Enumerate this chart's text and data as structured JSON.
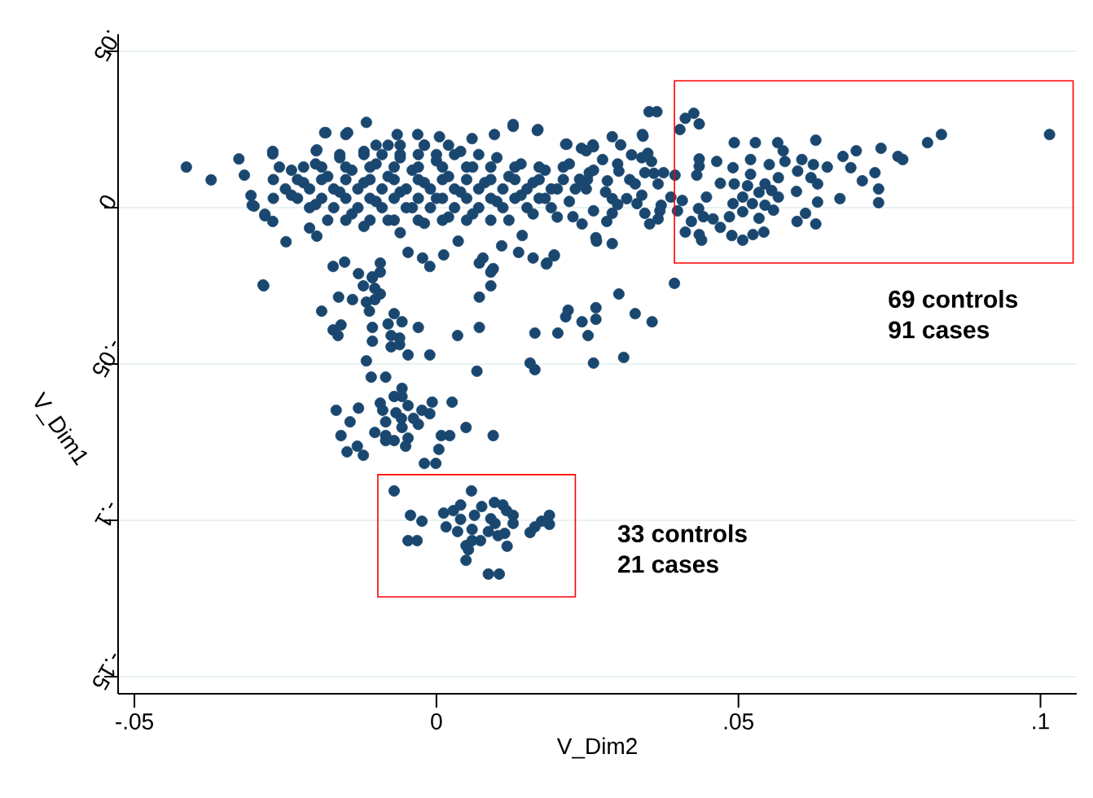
{
  "chart_data": {
    "type": "scatter",
    "xlabel": "V_Dim2",
    "ylabel": "V_Dim1",
    "color": "#1a476f",
    "marker": "circle",
    "grid": "y",
    "xlim": [
      -0.0527,
      0.106
    ],
    "ylim": [
      -0.1555,
      0.0555
    ],
    "xticks": [
      {
        "value": -0.05,
        "label": "-.05"
      },
      0,
      {
        "value": 0.05,
        "label": ".05"
      },
      {
        "value": 0.1,
        "label": ".1"
      }
    ],
    "yticks": [
      {
        "value": 0.05,
        "label": ".05"
      },
      0,
      {
        "value": -0.05,
        "label": "-.05"
      },
      {
        "value": -0.1,
        "label": "-.1"
      },
      {
        "value": -0.15,
        "label": "-.15"
      }
    ],
    "annotations": [
      "69 controls",
      "91 cases",
      "33 controls",
      "21 cases"
    ],
    "x": [
      -0.0414,
      -0.0373,
      -0.0327,
      -0.0318,
      -0.0307,
      -0.0302,
      -0.0284,
      -0.0271,
      -0.0287,
      -0.0249,
      -0.021,
      -0.0199,
      -0.0183,
      -0.015,
      -0.0116,
      -0.0065,
      -0.0031,
      0.0005,
      0.0059,
      0.0096,
      0.0127,
      0.0167,
      0.0214,
      0.0248,
      0.0291,
      0.0342,
      0.0352,
      0.0365,
      -0.024,
      -0.024,
      -0.022,
      -0.02,
      -0.02,
      -0.018,
      -0.018,
      -0.016,
      -0.016,
      -0.014,
      -0.014,
      -0.012,
      -0.012,
      -0.012,
      -0.01,
      -0.01,
      -0.008,
      -0.008,
      -0.008,
      -0.006,
      -0.006,
      -0.006,
      -0.004,
      -0.004,
      -0.002,
      -0.002,
      -0.002,
      0.0,
      0.0,
      0.002,
      0.002,
      0.004,
      0.004,
      0.006,
      0.006,
      0.008,
      0.01,
      0.01,
      0.012,
      0.012,
      0.014,
      0.014,
      0.016,
      0.016,
      0.018,
      0.018,
      0.02,
      0.02,
      0.022,
      0.022,
      0.024,
      0.026,
      0.026,
      0.028,
      0.03,
      0.03,
      0.032,
      0.034,
      0.034,
      0.036,
      0.037,
      0.0426,
      0.0412,
      0.0435,
      0.0403,
      0.0493,
      0.0528,
      0.0565,
      0.0628,
      0.0574,
      0.0695,
      0.0736,
      0.0813,
      0.0836,
      0.1015,
      0.0764,
      0.0772,
      0.0726,
      0.0732,
      0.0732,
      0.0673,
      0.0686,
      0.0705,
      0.0668,
      0.0631,
      0.0628,
      0.0611,
      0.0597,
      0.0542,
      0.0524,
      0.0507,
      0.0489,
      0.047,
      0.0439,
      0.0435,
      0.0412,
      0.0422,
      0.0399,
      0.0458,
      0.0434,
      0.0447,
      0.047,
      0.0435,
      0.0435,
      0.0431,
      0.0464,
      0.0491,
      0.052,
      0.052,
      0.0493,
      0.0515,
      0.0551,
      0.0577,
      0.0605,
      0.0624,
      0.0647,
      0.0598,
      0.0566,
      0.0544,
      0.0534,
      0.0566,
      0.0596,
      0.062,
      0.0631,
      0.0555,
      0.0507,
      0.0491,
      0.0523,
      0.0544,
      0.0558,
      0.0534,
      0.0507,
      0.0485,
      0.0442,
      0.0395,
      0.0376,
      0.0341,
      0.0305,
      0.035,
      0.0323,
      0.0356,
      0.0259,
      0.024,
      0.0275,
      0.0302,
      0.0345,
      0.0253,
      0.0367,
      0.0329,
      0.0283,
      0.0237,
      0.0248,
      0.0291,
      0.0315,
      0.0332,
      0.0372,
      0.0388,
      0.0407,
      0.0345,
      0.0367,
      0.0353,
      0.0291,
      0.0282,
      0.0241,
      0.0264,
      0.0291,
      0.0226,
      -0.0198,
      -0.0171,
      -0.0152,
      -0.0129,
      -0.0106,
      -0.0093,
      -0.0023,
      -0.0011,
      0.0012,
      0.0071,
      0.0093,
      0.0136,
      0.016,
      0.0183,
      0.0195,
      0.0108,
      0.0142,
      0.0265,
      -0.0047,
      0.0036,
      -0.0271,
      -0.0284,
      -0.0305,
      -0.0271,
      -0.0198,
      -0.0185,
      -0.0147,
      0.0127,
      0.0168,
      0.0216,
      0.026,
      -0.0286,
      -0.0106,
      -0.0093,
      -0.0121,
      -0.0102,
      -0.0093,
      -0.0102,
      -0.0116,
      -0.0111,
      -0.0162,
      -0.0139,
      -0.019,
      -0.0158,
      -0.0171,
      -0.0163,
      -0.0106,
      -0.0106,
      -0.007,
      -0.0057,
      -0.008,
      -0.0075,
      -0.0061,
      -0.0061,
      -0.0075,
      -0.003,
      -0.0047,
      -0.0011,
      -0.0116,
      -0.0108,
      -0.0084,
      0.0035,
      0.0071,
      0.0071,
      0.009,
      0.009,
      0.0094,
      0.0077,
      0.0067,
      0.0163,
      0.0201,
      0.0214,
      0.0218,
      0.0241,
      0.0251,
      0.0264,
      0.0264,
      0.0302,
      0.0329,
      0.0357,
      0.0394,
      0.031,
      0.026,
      0.0155,
      0.0163,
      0.0182,
      0.0195,
      -0.0057,
      -0.007,
      -0.0057,
      -0.0093,
      -0.0089,
      -0.0047,
      -0.0007,
      0.0026,
      -0.0024,
      -0.0011,
      -0.0067,
      -0.0058,
      -0.0038,
      -0.003,
      -0.0084,
      -0.0057,
      -0.0166,
      -0.0129,
      -0.0143,
      -0.0158,
      -0.0102,
      -0.0084,
      -0.0084,
      -0.007,
      -0.0047,
      -0.0051,
      -0.0131,
      -0.0148,
      -0.0121,
      0.0008,
      0.0022,
      0.0049,
      0.0094,
      0.0004,
      -0.002,
      -0.0001,
      -0.007,
      0.0058,
      -0.0043,
      -0.0024,
      -0.0047,
      -0.0032,
      0.0016,
      0.0012,
      0.0028,
      0.004,
      0.004,
      0.0035,
      0.0059,
      0.0063,
      0.0075,
      0.0096,
      0.011,
      0.0116,
      0.0127,
      0.0127,
      0.009,
      0.0097,
      0.0086,
      0.0102,
      0.0113,
      0.0073,
      0.0059,
      0.0049,
      0.0053,
      0.0049,
      0.0117,
      0.0155,
      0.0163,
      0.0174,
      0.0187,
      0.0187,
      0.0086,
      0.0104,
      -0.016,
      -0.012,
      -0.009,
      -0.006,
      -0.003,
      0.0,
      0.003,
      0.007,
      -0.026,
      -0.022,
      -0.019,
      -0.015,
      -0.011,
      -0.007,
      -0.003,
      0.001,
      0.005,
      0.009,
      0.013,
      0.017,
      0.021,
      -0.027,
      -0.023,
      -0.019,
      -0.015,
      -0.011,
      -0.007,
      -0.003,
      0.001,
      0.005,
      0.009,
      0.013,
      0.017,
      0.021,
      0.025,
      -0.025,
      -0.021,
      -0.017,
      -0.013,
      -0.009,
      -0.005,
      -0.001,
      0.003,
      0.007,
      0.011,
      0.015,
      0.019,
      0.023,
      -0.027,
      -0.023,
      -0.019,
      -0.015,
      -0.011,
      -0.007,
      -0.003,
      0.001,
      0.005,
      0.009,
      0.013,
      0.017,
      -0.021,
      -0.017,
      -0.013,
      -0.009,
      -0.005,
      -0.001,
      0.003,
      0.007,
      0.011,
      0.015,
      0.019,
      -0.015,
      -0.011,
      -0.007,
      -0.003,
      0.001,
      0.005,
      0.009,
      -0.01,
      -0.006,
      -0.002,
      0.002
    ],
    "values": [
      0.013,
      0.0089,
      0.0156,
      0.0104,
      0.0039,
      0.0005,
      -0.0026,
      0.018,
      -0.0247,
      -0.0109,
      -0.0065,
      0.0182,
      0.024,
      0.0234,
      0.0273,
      0.0234,
      0.0234,
      0.0227,
      0.0221,
      0.0234,
      0.026,
      0.0247,
      0.0203,
      0.0182,
      0.0227,
      0.0229,
      0.0307,
      0.0307,
      0.012,
      0.004,
      0.008,
      0.014,
      0.001,
      0.01,
      -0.004,
      0.016,
      0.005,
      0.012,
      -0.002,
      0.018,
      0.008,
      -0.006,
      0.014,
      0.002,
      0.02,
      0.01,
      -0.004,
      0.016,
      0.005,
      -0.008,
      0.012,
      0.0,
      0.02,
      0.008,
      -0.005,
      0.015,
      0.003,
      0.01,
      -0.003,
      0.018,
      0.005,
      0.013,
      -0.002,
      0.008,
      0.016,
      0.002,
      0.01,
      -0.004,
      0.014,
      0.004,
      0.008,
      -0.002,
      0.012,
      0.003,
      0.006,
      -0.003,
      0.014,
      0.002,
      0.008,
      0.012,
      -0.001,
      0.005,
      0.014,
      0.001,
      0.009,
      0.004,
      0.016,
      0.011,
      -0.001,
      0.0302,
      0.0286,
      0.0268,
      0.025,
      0.0208,
      0.0208,
      0.0208,
      0.0216,
      0.0182,
      0.0182,
      0.019,
      0.0208,
      0.0234,
      0.0234,
      0.0164,
      0.0154,
      0.0112,
      0.006,
      0.0016,
      0.0164,
      0.0128,
      0.0086,
      0.0029,
      0.0018,
      -0.0052,
      -0.0018,
      -0.0044,
      -0.0078,
      -0.0086,
      -0.0104,
      -0.0089,
      -0.0063,
      -0.0104,
      -0.0086,
      -0.0078,
      -0.0044,
      -0.001,
      -0.0036,
      -0.0003,
      0.0034,
      0.0078,
      0.0156,
      0.0133,
      0.0104,
      0.0148,
      0.0128,
      0.0154,
      0.0107,
      0.0076,
      0.007,
      0.0138,
      0.0148,
      0.0154,
      0.0138,
      0.013,
      0.0117,
      0.0096,
      0.0076,
      0.0049,
      0.0034,
      0.0052,
      0.0096,
      0.0076,
      0.0055,
      0.0034,
      0.0013,
      0.0013,
      0.0008,
      -0.0008,
      -0.0034,
      -0.0013,
      -0.0029,
      -0.0029,
      0.0104,
      0.0112,
      0.0234,
      0.0201,
      0.0174,
      0.0169,
      0.0148,
      0.0201,
      0.019,
      0.0154,
      0.0117,
      0.0112,
      0.0112,
      0.0076,
      0.0076,
      0.0086,
      0.0091,
      0.006,
      0.0029,
      0.0029,
      0.0013,
      0.0008,
      0.0034,
      0.0023,
      -0.0018,
      -0.0036,
      -0.0052,
      -0.0018,
      -0.0044,
      -0.0052,
      -0.0096,
      -0.0115,
      -0.0029,
      -0.0091,
      -0.0188,
      -0.0174,
      -0.0211,
      -0.0224,
      -0.0177,
      -0.0161,
      -0.0188,
      -0.0151,
      -0.0177,
      -0.0198,
      -0.0143,
      -0.0161,
      -0.0177,
      -0.0151,
      -0.0122,
      -0.0089,
      -0.0107,
      -0.0143,
      -0.0107,
      -0.0044,
      -0.0021,
      0.0008,
      0.0172,
      0.0185,
      0.024,
      0.024,
      0.0266,
      0.025,
      0.0203,
      0.0195,
      -0.025,
      -0.0221,
      -0.0206,
      -0.025,
      -0.0258,
      -0.0276,
      -0.0294,
      -0.0302,
      -0.0331,
      -0.0286,
      -0.0294,
      -0.0331,
      -0.0375,
      -0.0391,
      -0.0409,
      -0.0383,
      -0.0427,
      -0.0339,
      -0.0365,
      -0.0372,
      -0.0409,
      -0.0417,
      -0.0438,
      -0.0445,
      -0.0383,
      -0.0471,
      -0.0471,
      -0.049,
      -0.0542,
      -0.0542,
      -0.0409,
      -0.0383,
      -0.0286,
      -0.025,
      -0.0206,
      -0.0195,
      -0.0161,
      -0.0523,
      -0.0401,
      -0.0401,
      -0.0349,
      -0.0328,
      -0.0365,
      -0.0409,
      -0.0357,
      -0.032,
      -0.0276,
      -0.0339,
      -0.0365,
      -0.0242,
      -0.0479,
      -0.0497,
      -0.0497,
      -0.0518,
      -0.018,
      -0.0154,
      -0.0578,
      -0.0604,
      -0.0604,
      -0.0625,
      -0.0648,
      -0.0633,
      -0.0622,
      -0.0622,
      -0.0648,
      -0.0659,
      -0.0656,
      -0.0674,
      -0.0674,
      -0.0693,
      -0.0685,
      -0.0703,
      -0.0648,
      -0.0641,
      -0.0685,
      -0.0729,
      -0.0719,
      -0.0729,
      -0.0745,
      -0.0745,
      -0.0737,
      -0.0763,
      -0.0763,
      -0.0781,
      -0.0792,
      -0.0729,
      -0.0729,
      -0.0703,
      -0.0729,
      -0.0773,
      -0.0818,
      -0.0818,
      -0.0906,
      -0.0906,
      -0.0984,
      -0.1003,
      -0.1065,
      -0.1065,
      -0.1021,
      -0.0977,
      -0.0969,
      -0.0951,
      -0.0997,
      -0.1036,
      -0.1029,
      -0.0984,
      -0.0956,
      -0.0943,
      -0.0951,
      -0.0969,
      -0.0984,
      -0.101,
      -0.0995,
      -0.101,
      -0.1036,
      -0.1049,
      -0.1042,
      -0.1065,
      -0.1065,
      -0.1081,
      -0.1094,
      -0.1128,
      -0.1083,
      -0.1039,
      -0.1021,
      -0.1003,
      -0.0984,
      -0.1013,
      -0.1172,
      -0.1172,
      0.017,
      0.017,
      0.017,
      0.017,
      0.017,
      0.017,
      0.017,
      0.017,
      0.013,
      0.013,
      0.013,
      0.013,
      0.013,
      0.013,
      0.013,
      0.013,
      0.013,
      0.013,
      0.013,
      0.013,
      0.013,
      0.009,
      0.009,
      0.009,
      0.009,
      0.009,
      0.009,
      0.009,
      0.009,
      0.009,
      0.009,
      0.009,
      0.009,
      0.009,
      0.009,
      0.006,
      0.006,
      0.006,
      0.006,
      0.006,
      0.006,
      0.006,
      0.006,
      0.006,
      0.006,
      0.006,
      0.006,
      0.006,
      0.003,
      0.003,
      0.003,
      0.003,
      0.003,
      0.003,
      0.003,
      0.003,
      0.003,
      0.003,
      0.003,
      0.003,
      0.0,
      0.0,
      0.0,
      0.0,
      0.0,
      0.0,
      0.0,
      0.0,
      0.0,
      0.0,
      0.0,
      -0.004,
      -0.004,
      -0.004,
      -0.004,
      -0.004,
      -0.004,
      -0.004,
      0.02,
      0.02,
      0.02,
      0.02
    ]
  }
}
